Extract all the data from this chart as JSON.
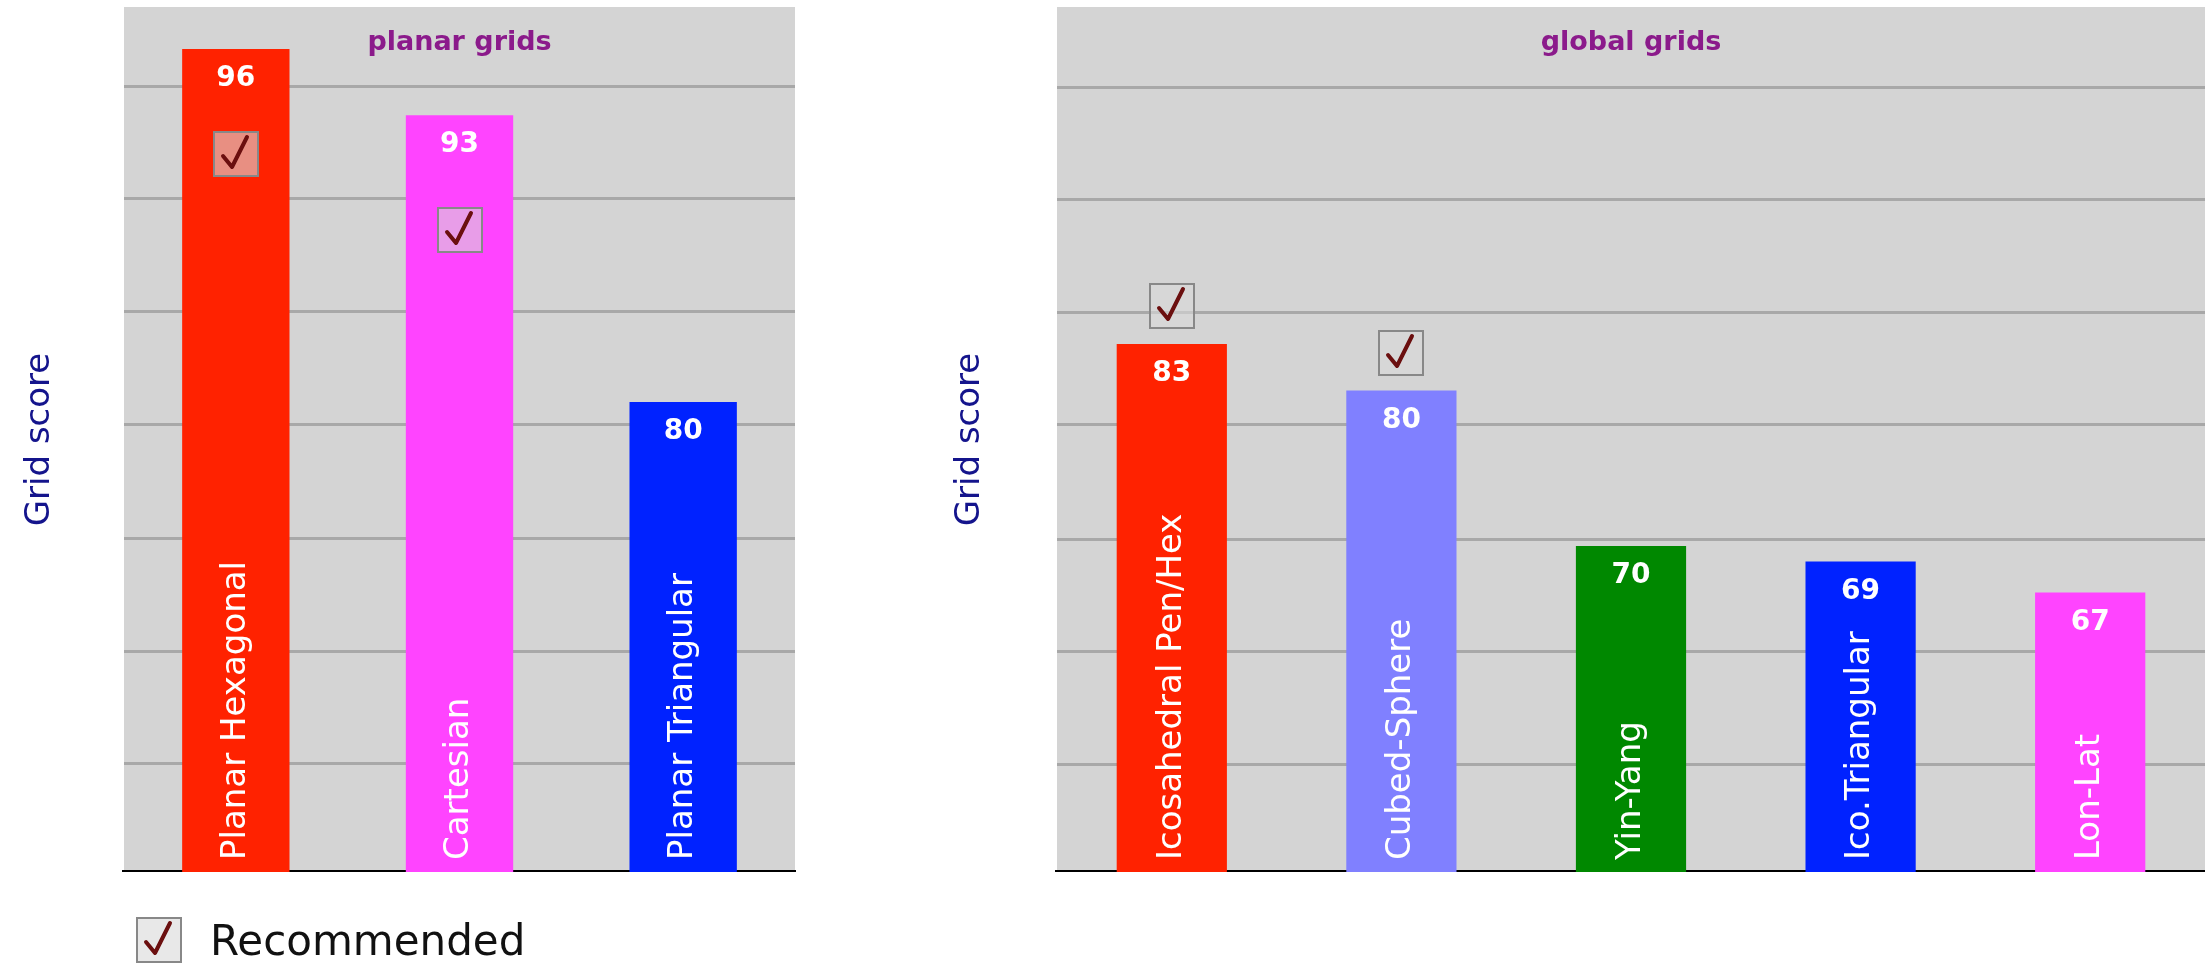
{
  "chart_data": [
    {
      "type": "bar",
      "title": "planar grids",
      "ylabel": "Grid score",
      "categories": [
        "Planar Hexagonal",
        "Cartesian",
        "Planar Triangular"
      ],
      "values": [
        96,
        93,
        80
      ],
      "colors": [
        "#ff2200",
        "#ff44ff",
        "#0022ff"
      ],
      "data_labels": true,
      "grid": "y",
      "tick_labels": "x",
      "ylim": [
        58.7,
        97.9
      ],
      "yticks": [
        {
          "value": 63.6,
          "label": null
        },
        {
          "value": 68.7,
          "label": null
        },
        {
          "value": 73.8,
          "label": null
        },
        {
          "value": 79,
          "label": null
        },
        {
          "value": 84.1,
          "label": null
        },
        {
          "value": 89.2,
          "label": null
        },
        {
          "value": 94.3,
          "label": null
        }
      ],
      "annotations": [
        "Recommended"
      ]
    },
    {
      "type": "bar",
      "title": "global grids",
      "ylabel": "Grid score",
      "categories": [
        "Icosahedral Pen/Hex",
        "Cubed-Sphere",
        "Yin-Yang",
        "Ico.Triangular",
        "Lon-Lat"
      ],
      "values": [
        83,
        80,
        70,
        69,
        67
      ],
      "colors": [
        "#ff2200",
        "#8080ff",
        "#008800",
        "#0022ff",
        "#ff44ff"
      ],
      "data_labels": true,
      "grid": "y",
      "tick_labels": "x",
      "ylim": [
        49,
        104.7
      ],
      "yticks": [
        {
          "value": 55.9,
          "label": null
        },
        {
          "value": 63.2,
          "label": null
        },
        {
          "value": 70.4,
          "label": null
        },
        {
          "value": 77.8,
          "label": null
        },
        {
          "value": 85,
          "label": null
        },
        {
          "value": 92.3,
          "label": null
        },
        {
          "value": 99.5,
          "label": null
        }
      ]
    }
  ]
}
